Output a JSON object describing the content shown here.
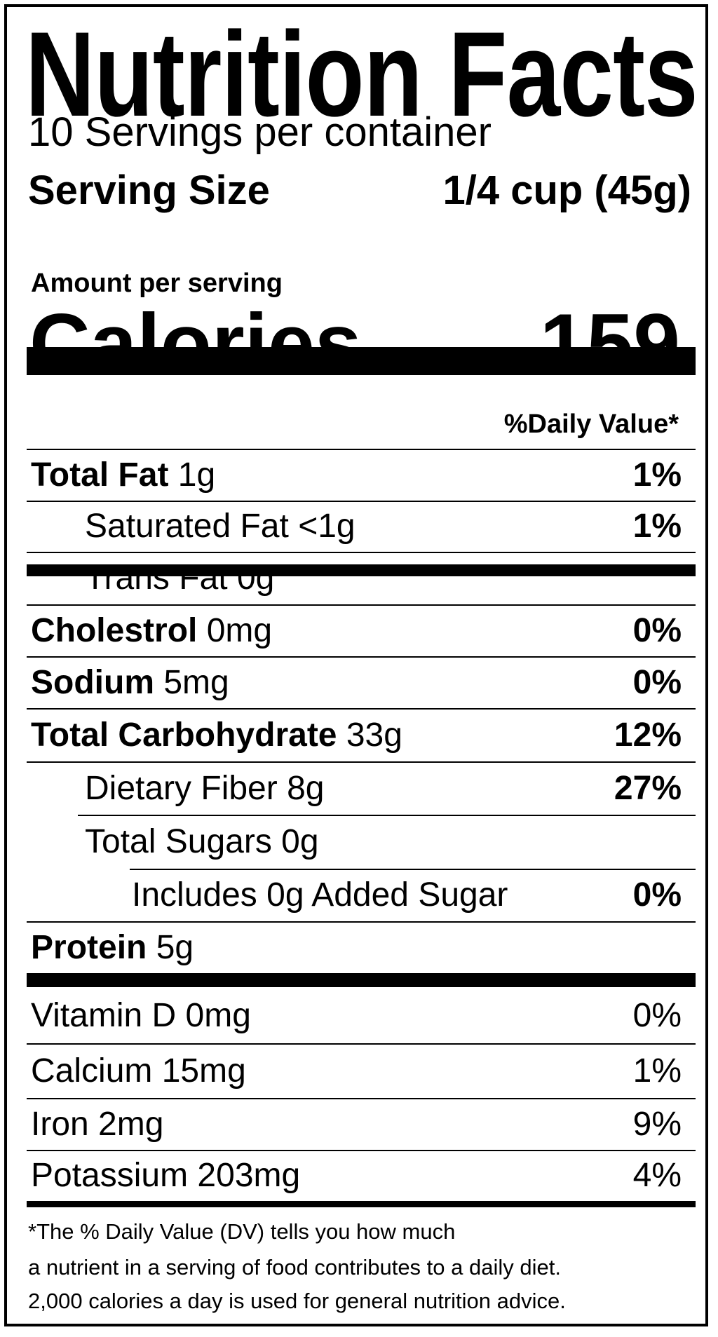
{
  "title": "Nutrition Facts",
  "servings_per_container": "10 Servings per container",
  "serving_size": {
    "label": "Serving Size",
    "value": "1/4 cup (45g)"
  },
  "amount_per_serving": "Amount per serving",
  "calories": {
    "label": "Calories",
    "value": "159"
  },
  "daily_value_header": "%Daily Value*",
  "nutrients": [
    {
      "label": "Total Fat",
      "amount": "1g",
      "dv": "1%",
      "bold": true,
      "indent": 0
    },
    {
      "label": "Saturated Fat",
      "amount": "<1g",
      "dv": "1%",
      "bold": false,
      "indent": 1
    },
    {
      "label": "Trans Fat",
      "amount": "0g",
      "dv": "",
      "bold": false,
      "indent": 1
    },
    {
      "label": "Cholestrol",
      "amount": "0mg",
      "dv": "0%",
      "bold": true,
      "indent": 0
    },
    {
      "label": "Sodium",
      "amount": "5mg",
      "dv": "0%",
      "bold": true,
      "indent": 0
    },
    {
      "label": "Total Carbohydrate",
      "amount": "33g",
      "dv": "12%",
      "bold": true,
      "indent": 0
    },
    {
      "label": "Dietary Fiber",
      "amount": "8g",
      "dv": "27%",
      "bold": false,
      "indent": 1
    },
    {
      "label": "Total Sugars",
      "amount": "0g",
      "dv": "",
      "bold": false,
      "indent": 1
    },
    {
      "label": "Includes 0g Added Sugar",
      "amount": "",
      "dv": "0%",
      "bold": false,
      "indent": 2
    },
    {
      "label": "Protein",
      "amount": "5g",
      "dv": "",
      "bold": true,
      "indent": 0
    }
  ],
  "vitamins": [
    {
      "label": "Vitamin D 0mg",
      "dv": "0%"
    },
    {
      "label": "Calcium 15mg",
      "dv": "1%"
    },
    {
      "label": "Iron 2mg",
      "dv": "9%"
    },
    {
      "label": "Potassium 203mg",
      "dv": "4%"
    }
  ],
  "footnote": [
    "*The % Daily Value (DV) tells you how much",
    "a nutrient in a serving of food contributes to a daily diet.",
    "2,000 calories a day is used for general nutrition advice."
  ]
}
